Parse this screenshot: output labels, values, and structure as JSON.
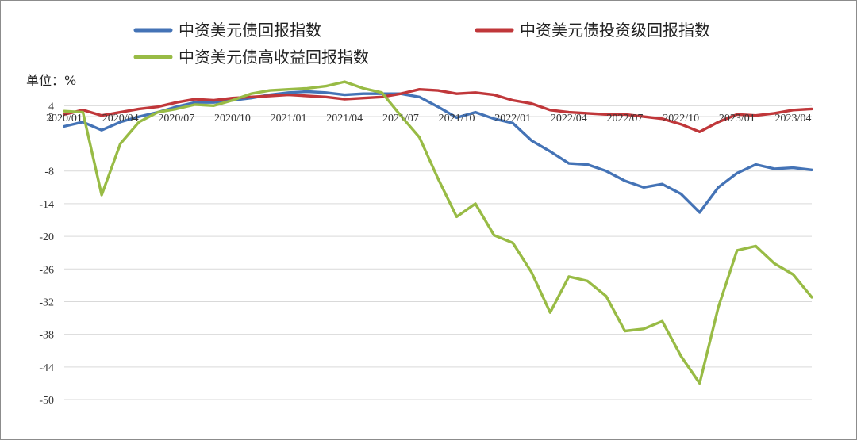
{
  "unit_label": "单位：%",
  "colors": {
    "blue": "#4473b6",
    "red": "#c0373a",
    "green": "#98bb45",
    "grid": "#d9d9d9"
  },
  "chart_data": {
    "type": "line",
    "title": "",
    "xlabel": "",
    "ylabel": "单位：%",
    "x_tick_labels": [
      "2020/01",
      "2020/04",
      "2020/07",
      "2020/10",
      "2021/01",
      "2021/04",
      "2021/07",
      "2021/10",
      "2022/01",
      "2022/04",
      "2022/07",
      "2022/10",
      "2023/01",
      "2023/04"
    ],
    "x_range": [
      "2020/01",
      "2023/05"
    ],
    "y_ticks": [
      4,
      2,
      -8,
      -14,
      -20,
      -26,
      -32,
      -38,
      -44,
      -50
    ],
    "ylim": [
      -50,
      9
    ],
    "grid": "horizontal",
    "legend_position": "top",
    "series": [
      {
        "name": "中资美元债回报指数",
        "color": "#4473b6",
        "points": [
          [
            "2020/01",
            0.2
          ],
          [
            "2020/02",
            1.0
          ],
          [
            "2020/03",
            -0.5
          ],
          [
            "2020/04",
            1.0
          ],
          [
            "2020/05",
            2.0
          ],
          [
            "2020/06",
            2.8
          ],
          [
            "2020/07",
            3.8
          ],
          [
            "2020/08",
            4.6
          ],
          [
            "2020/09",
            4.6
          ],
          [
            "2020/10",
            5.0
          ],
          [
            "2020/11",
            5.4
          ],
          [
            "2020/12",
            6.0
          ],
          [
            "2021/01",
            6.4
          ],
          [
            "2021/02",
            6.6
          ],
          [
            "2021/03",
            6.4
          ],
          [
            "2021/04",
            6.0
          ],
          [
            "2021/05",
            6.2
          ],
          [
            "2021/06",
            6.2
          ],
          [
            "2021/07",
            6.2
          ],
          [
            "2021/08",
            5.6
          ],
          [
            "2021/09",
            3.8
          ],
          [
            "2021/10",
            1.8
          ],
          [
            "2021/11",
            2.8
          ],
          [
            "2021/12",
            1.6
          ],
          [
            "2022/01",
            0.8
          ],
          [
            "2022/02",
            -2.4
          ],
          [
            "2022/03",
            -4.4
          ],
          [
            "2022/04",
            -6.6
          ],
          [
            "2022/05",
            -6.8
          ],
          [
            "2022/06",
            -8.0
          ],
          [
            "2022/07",
            -9.8
          ],
          [
            "2022/08",
            -11.0
          ],
          [
            "2022/09",
            -10.4
          ],
          [
            "2022/10",
            -12.2
          ],
          [
            "2022/11",
            -15.6
          ],
          [
            "2022/12",
            -11.0
          ],
          [
            "2023/01",
            -8.4
          ],
          [
            "2023/02",
            -6.8
          ],
          [
            "2023/03",
            -7.6
          ],
          [
            "2023/04",
            -7.4
          ],
          [
            "2023/05",
            -7.8
          ]
        ]
      },
      {
        "name": "中资美元债投资级回报指数",
        "color": "#c0373a",
        "points": [
          [
            "2020/01",
            2.4
          ],
          [
            "2020/02",
            3.2
          ],
          [
            "2020/03",
            2.2
          ],
          [
            "2020/04",
            2.8
          ],
          [
            "2020/05",
            3.4
          ],
          [
            "2020/06",
            3.8
          ],
          [
            "2020/07",
            4.6
          ],
          [
            "2020/08",
            5.2
          ],
          [
            "2020/09",
            5.0
          ],
          [
            "2020/10",
            5.4
          ],
          [
            "2020/11",
            5.6
          ],
          [
            "2020/12",
            5.8
          ],
          [
            "2021/01",
            6.0
          ],
          [
            "2021/02",
            5.8
          ],
          [
            "2021/03",
            5.6
          ],
          [
            "2021/04",
            5.2
          ],
          [
            "2021/05",
            5.4
          ],
          [
            "2021/06",
            5.6
          ],
          [
            "2021/07",
            6.2
          ],
          [
            "2021/08",
            7.0
          ],
          [
            "2021/09",
            6.8
          ],
          [
            "2021/10",
            6.2
          ],
          [
            "2021/11",
            6.4
          ],
          [
            "2021/12",
            6.0
          ],
          [
            "2022/01",
            5.0
          ],
          [
            "2022/02",
            4.4
          ],
          [
            "2022/03",
            3.2
          ],
          [
            "2022/04",
            2.8
          ],
          [
            "2022/05",
            2.6
          ],
          [
            "2022/06",
            2.4
          ],
          [
            "2022/07",
            2.4
          ],
          [
            "2022/08",
            2.0
          ],
          [
            "2022/09",
            1.6
          ],
          [
            "2022/10",
            0.6
          ],
          [
            "2022/11",
            -0.8
          ],
          [
            "2022/12",
            1.0
          ],
          [
            "2023/01",
            2.4
          ],
          [
            "2023/02",
            2.2
          ],
          [
            "2023/03",
            2.6
          ],
          [
            "2023/04",
            3.2
          ],
          [
            "2023/05",
            3.4
          ]
        ]
      },
      {
        "name": "中资美元债高收益回报指数",
        "color": "#98bb45",
        "points": [
          [
            "2020/01",
            3.0
          ],
          [
            "2020/02",
            2.8
          ],
          [
            "2020/03",
            -12.4
          ],
          [
            "2020/04",
            -3.0
          ],
          [
            "2020/05",
            1.0
          ],
          [
            "2020/06",
            2.8
          ],
          [
            "2020/07",
            3.4
          ],
          [
            "2020/08",
            4.2
          ],
          [
            "2020/09",
            4.0
          ],
          [
            "2020/10",
            5.0
          ],
          [
            "2020/11",
            6.2
          ],
          [
            "2020/12",
            6.8
          ],
          [
            "2021/01",
            7.0
          ],
          [
            "2021/02",
            7.2
          ],
          [
            "2021/03",
            7.6
          ],
          [
            "2021/04",
            8.4
          ],
          [
            "2021/05",
            7.2
          ],
          [
            "2021/06",
            6.4
          ],
          [
            "2021/07",
            2.2
          ],
          [
            "2021/08",
            -1.8
          ],
          [
            "2021/09",
            -9.4
          ],
          [
            "2021/10",
            -16.4
          ],
          [
            "2021/11",
            -14.0
          ],
          [
            "2021/12",
            -19.8
          ],
          [
            "2022/01",
            -21.2
          ],
          [
            "2022/02",
            -26.6
          ],
          [
            "2022/03",
            -34.0
          ],
          [
            "2022/04",
            -27.4
          ],
          [
            "2022/05",
            -28.2
          ],
          [
            "2022/06",
            -31.0
          ],
          [
            "2022/07",
            -37.4
          ],
          [
            "2022/08",
            -37.0
          ],
          [
            "2022/09",
            -35.6
          ],
          [
            "2022/10",
            -42.0
          ],
          [
            "2022/11",
            -47.0
          ],
          [
            "2022/12",
            -33.0
          ],
          [
            "2023/01",
            -22.6
          ],
          [
            "2023/02",
            -21.8
          ],
          [
            "2023/03",
            -25.0
          ],
          [
            "2023/04",
            -27.0
          ],
          [
            "2023/05",
            -31.2
          ]
        ]
      }
    ]
  }
}
